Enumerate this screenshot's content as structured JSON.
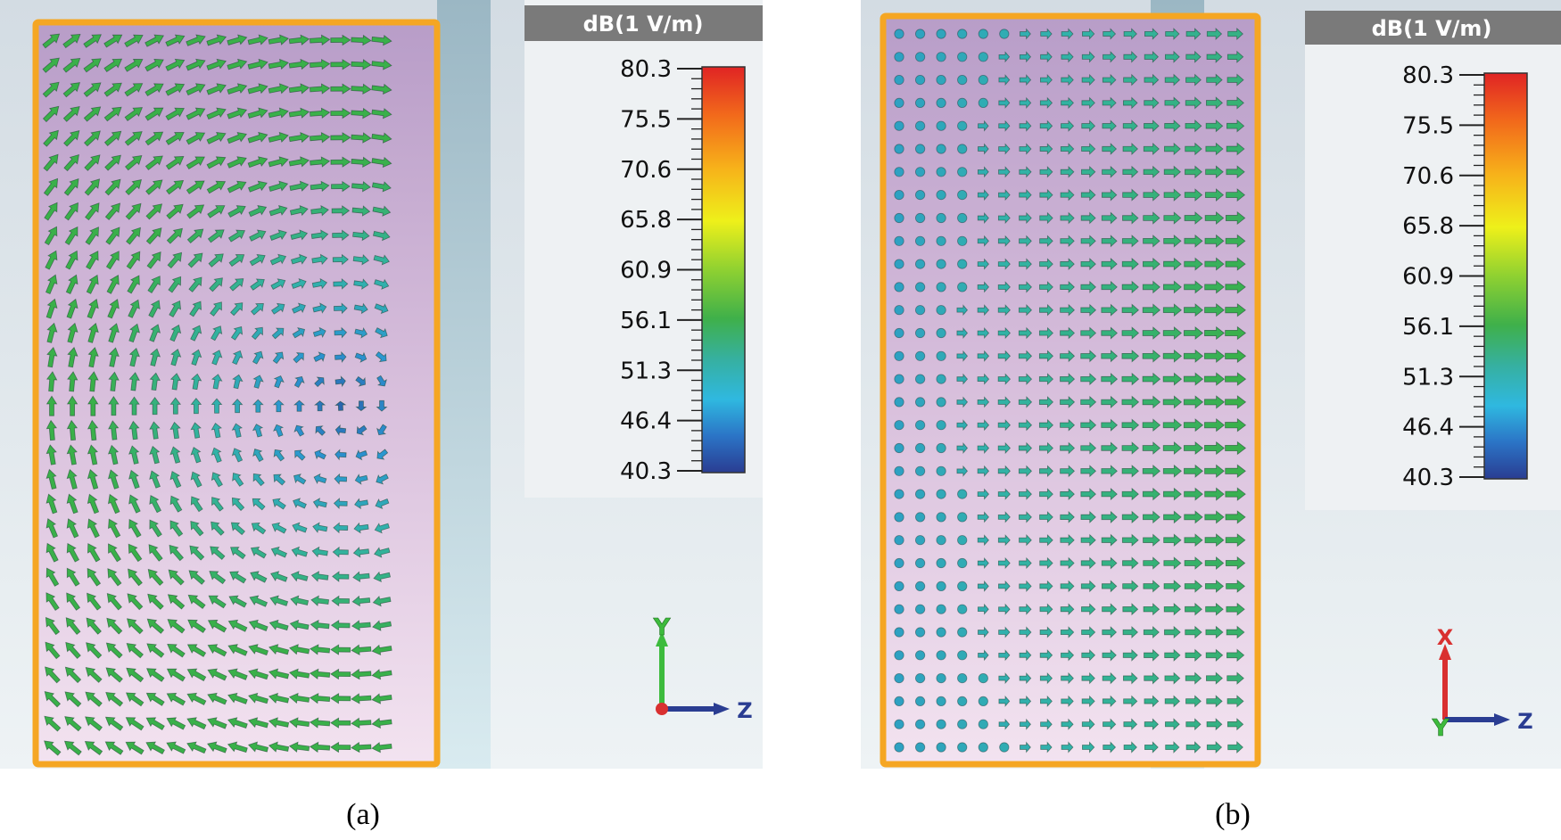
{
  "panels": [
    {
      "id": "a",
      "caption": "(a)",
      "legend": {
        "title": "dB(1 V/m)",
        "ticks": [
          "80.3",
          "75.5",
          "70.6",
          "65.8",
          "60.9",
          "56.1",
          "51.3",
          "46.4",
          "40.3"
        ]
      },
      "axes": {
        "vertical": "Y",
        "horizontal": "Z",
        "origin": ""
      },
      "field_pattern": "vortex"
    },
    {
      "id": "b",
      "caption": "(b)",
      "legend": {
        "title": "dB(1 V/m)",
        "ticks": [
          "80.3",
          "75.5",
          "70.6",
          "65.8",
          "60.9",
          "56.1",
          "51.3",
          "46.4",
          "40.3"
        ]
      },
      "axes": {
        "vertical": "X",
        "horizontal": "Z",
        "origin": "Y"
      },
      "field_pattern": "dots-to-arrows"
    }
  ],
  "colors": {
    "frame": "#f5a623",
    "plate_top": "#b69bc6",
    "plate_bottom": "#f1dfee",
    "bg_left": "#d5dde2",
    "bg_right": "#e2eef1",
    "legend_header": "#7a7a7a",
    "legend_bg": "#eef1f3"
  }
}
